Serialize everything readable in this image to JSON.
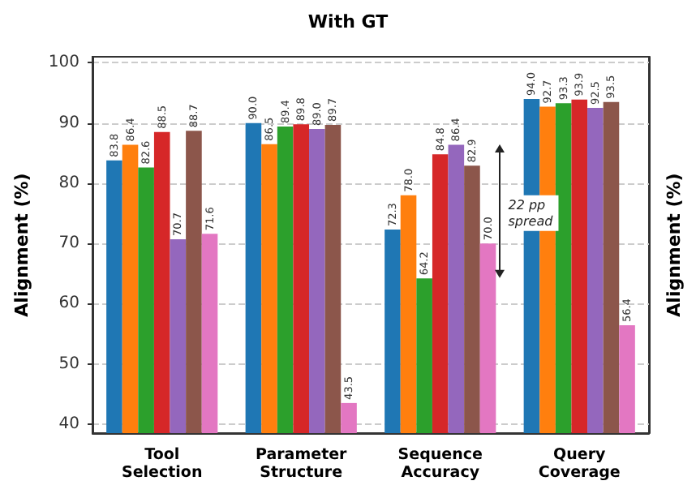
{
  "chart_data": {
    "type": "bar",
    "title": "With GT",
    "ylabel": "Alignment (%)",
    "y2label": "Alignment (%)",
    "categories": [
      "Tool\nSelection",
      "Parameter\nStructure",
      "Sequence\nAccuracy",
      "Query\nCoverage"
    ],
    "series": [
      {
        "color": "#1f77b4",
        "values": [
          83.8,
          90.0,
          72.3,
          94.0
        ],
        "value_labels": [
          "83.8",
          "90.0",
          "72.3",
          "94.0"
        ]
      },
      {
        "color": "#ff7f0e",
        "values": [
          86.4,
          86.5,
          78.0,
          92.7
        ],
        "value_labels": [
          "86.4",
          "86.5",
          "78.0",
          "92.7"
        ]
      },
      {
        "color": "#2ca02c",
        "values": [
          82.6,
          89.4,
          64.2,
          93.3
        ],
        "value_labels": [
          "82.6",
          "89.4",
          "64.2",
          "93.3"
        ]
      },
      {
        "color": "#d62728",
        "values": [
          88.5,
          89.8,
          84.8,
          93.9
        ],
        "value_labels": [
          "88.5",
          "89.8",
          "84.8",
          "93.9"
        ]
      },
      {
        "color": "#9467bd",
        "values": [
          70.7,
          89.0,
          86.4,
          92.5
        ],
        "value_labels": [
          "70.7",
          "89.0",
          "86.4",
          "92.5"
        ]
      },
      {
        "color": "#8c564b",
        "values": [
          88.7,
          89.7,
          82.9,
          93.5
        ],
        "value_labels": [
          "88.7",
          "89.7",
          "82.9",
          "93.5"
        ]
      },
      {
        "color": "#e377c2",
        "values": [
          71.6,
          43.5,
          70.0,
          56.4
        ],
        "value_labels": [
          "71.6",
          "43.5",
          "70.0",
          "56.4"
        ]
      }
    ],
    "ylim": [
      38.5,
      101
    ],
    "yticks": [
      40,
      50,
      60,
      70,
      80,
      90,
      100
    ],
    "grid": "y",
    "annotations": [
      "22 pp spread"
    ]
  }
}
